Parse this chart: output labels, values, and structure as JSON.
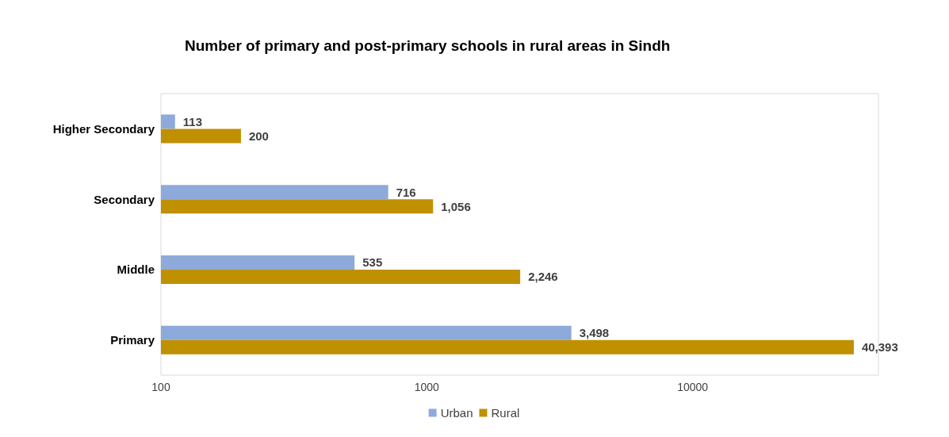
{
  "chart_data": {
    "type": "bar",
    "orientation": "horizontal",
    "title": "Number of primary and post-primary schools in rural areas in Sindh",
    "categories": [
      "Higher Secondary",
      "Secondary",
      "Middle",
      "Primary"
    ],
    "series": [
      {
        "name": "Urban",
        "color": "#8eaadb",
        "values": [
          113,
          716,
          535,
          3498
        ],
        "value_labels": [
          "113",
          "716",
          "535",
          "3,498"
        ]
      },
      {
        "name": "Rural",
        "color": "#bf9000",
        "values": [
          200,
          1056,
          2246,
          40393
        ],
        "value_labels": [
          "200",
          "1,056",
          "2,246",
          "40,393"
        ]
      }
    ],
    "log": "x",
    "xlim": [
      100,
      50000
    ],
    "xticks": [
      100,
      1000,
      10000
    ],
    "legend": "bottom",
    "grid": false
  }
}
